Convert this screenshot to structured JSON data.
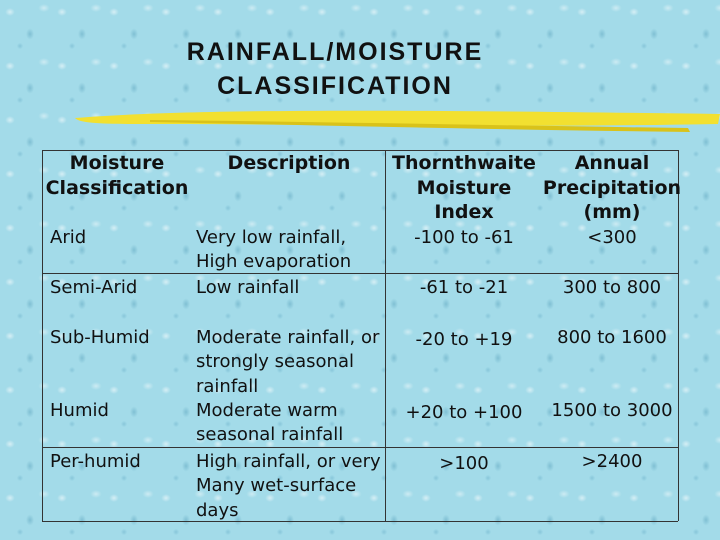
{
  "title": [
    "RAINFALL/MOISTURE",
    "CLASSIFICATION"
  ],
  "table": {
    "headers": [
      [
        "Moisture",
        "Classification"
      ],
      [
        "Description"
      ],
      [
        "Thornthwaite",
        "Moisture",
        "Index"
      ],
      [
        "Annual",
        "Precipitation",
        "(mm)"
      ]
    ],
    "rows": [
      {
        "classification": "Arid",
        "description": [
          "Very low rainfall,",
          "High evaporation"
        ],
        "index": "-100 to -61",
        "precipitation": "<300"
      },
      {
        "classification": "Semi-Arid",
        "description": [
          "Low rainfall"
        ],
        "index": "-61 to -21",
        "precipitation": "300 to 800"
      },
      {
        "classification": "Sub-Humid",
        "description": [
          "Moderate rainfall, or",
          "strongly seasonal",
          "rainfall"
        ],
        "index": "-20 to +19",
        "precipitation": "800 to 1600"
      },
      {
        "classification": "Humid",
        "description": [
          "Moderate warm",
          "seasonal rainfall"
        ],
        "index": "+20 to +100",
        "precipitation": "1500 to 3000"
      },
      {
        "classification": "Per-humid",
        "description": [
          "High rainfall, or very",
          "Many wet-surface",
          "days"
        ],
        "index": ">100",
        "precipitation": ">2400"
      }
    ]
  }
}
